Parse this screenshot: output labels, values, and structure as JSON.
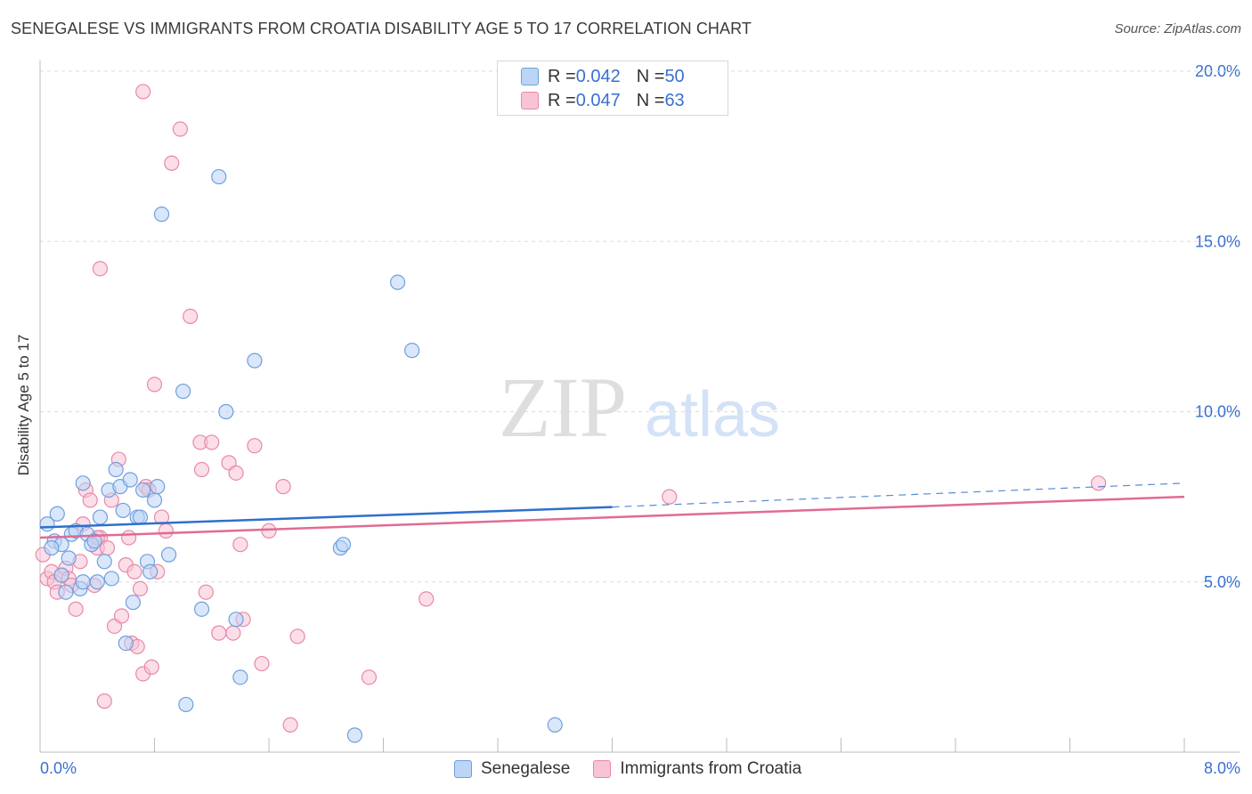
{
  "header": {
    "title": "SENEGALESE VS IMMIGRANTS FROM CROATIA DISABILITY AGE 5 TO 17 CORRELATION CHART",
    "source": "Source: ZipAtlas.com"
  },
  "watermark": {
    "zip": "ZIP",
    "atlas": "atlas"
  },
  "legend": {
    "series1": {
      "r_label": "R = ",
      "r_value": "0.042",
      "n_label": "N = ",
      "n_value": "50"
    },
    "series2": {
      "r_label": "R = ",
      "r_value": "0.047",
      "n_label": "N = ",
      "n_value": "63"
    }
  },
  "colors": {
    "blue_fill": "#bcd4f5",
    "blue_stroke": "#6f9fdd",
    "blue_line": "#2f6fcc",
    "pink_fill": "#f8c3d3",
    "pink_stroke": "#e889a8",
    "pink_line": "#e06b94",
    "tick_text": "#3a6fd0",
    "grid": "#dcdcdc"
  },
  "chart_data": {
    "type": "scatter",
    "title": "SENEGALESE VS IMMIGRANTS FROM CROATIA DISABILITY AGE 5 TO 17 CORRELATION CHART",
    "xlabel": "",
    "ylabel": "Disability Age 5 to 17",
    "xlim": [
      0,
      8
    ],
    "ylim": [
      0,
      20
    ],
    "x_tick_labels": [
      "0.0%",
      "8.0%"
    ],
    "y_ticks": [
      5,
      10,
      15,
      20
    ],
    "y_tick_labels": [
      "5.0%",
      "10.0%",
      "15.0%",
      "20.0%"
    ],
    "grid": true,
    "legend_position": "top-center",
    "series": [
      {
        "name": "Senegalese",
        "r": 0.042,
        "n": 50,
        "trend": {
          "x0": 0,
          "y0": 6.6,
          "x1": 4.0,
          "y1": 7.2,
          "dashed_to_x": 8.0,
          "dashed_to_y": 7.9
        },
        "points": [
          [
            0.05,
            6.7
          ],
          [
            0.1,
            6.2
          ],
          [
            0.12,
            7.0
          ],
          [
            0.15,
            6.1
          ],
          [
            0.18,
            4.7
          ],
          [
            0.2,
            5.7
          ],
          [
            0.22,
            6.4
          ],
          [
            0.25,
            6.5
          ],
          [
            0.28,
            4.8
          ],
          [
            0.3,
            7.9
          ],
          [
            0.33,
            6.4
          ],
          [
            0.36,
            6.1
          ],
          [
            0.38,
            6.2
          ],
          [
            0.4,
            5.0
          ],
          [
            0.42,
            6.9
          ],
          [
            0.45,
            5.6
          ],
          [
            0.48,
            7.7
          ],
          [
            0.5,
            5.1
          ],
          [
            0.53,
            8.3
          ],
          [
            0.56,
            7.8
          ],
          [
            0.58,
            7.1
          ],
          [
            0.6,
            3.2
          ],
          [
            0.63,
            8.0
          ],
          [
            0.65,
            4.4
          ],
          [
            0.68,
            6.9
          ],
          [
            0.7,
            6.9
          ],
          [
            0.72,
            7.7
          ],
          [
            0.75,
            5.6
          ],
          [
            0.77,
            5.3
          ],
          [
            0.8,
            7.4
          ],
          [
            0.82,
            7.8
          ],
          [
            0.85,
            15.8
          ],
          [
            0.9,
            5.8
          ],
          [
            1.0,
            10.6
          ],
          [
            1.02,
            1.4
          ],
          [
            1.13,
            4.2
          ],
          [
            1.25,
            16.9
          ],
          [
            1.3,
            10.0
          ],
          [
            1.37,
            3.9
          ],
          [
            1.4,
            2.2
          ],
          [
            1.5,
            11.5
          ],
          [
            2.1,
            6.0
          ],
          [
            2.12,
            6.1
          ],
          [
            2.2,
            0.5
          ],
          [
            2.5,
            13.8
          ],
          [
            2.6,
            11.8
          ],
          [
            3.6,
            0.8
          ],
          [
            0.3,
            5.0
          ],
          [
            0.15,
            5.2
          ],
          [
            0.08,
            6.0
          ]
        ]
      },
      {
        "name": "Immigrants from Croatia",
        "r": 0.047,
        "n": 63,
        "trend": {
          "x0": 0,
          "y0": 6.3,
          "x1": 8.0,
          "y1": 7.5
        },
        "points": [
          [
            0.02,
            5.8
          ],
          [
            0.05,
            5.1
          ],
          [
            0.08,
            5.3
          ],
          [
            0.1,
            5.0
          ],
          [
            0.12,
            4.7
          ],
          [
            0.15,
            5.2
          ],
          [
            0.18,
            5.4
          ],
          [
            0.2,
            5.1
          ],
          [
            0.22,
            4.9
          ],
          [
            0.25,
            4.2
          ],
          [
            0.28,
            5.6
          ],
          [
            0.3,
            6.7
          ],
          [
            0.32,
            7.7
          ],
          [
            0.35,
            7.4
          ],
          [
            0.38,
            4.9
          ],
          [
            0.4,
            6.0
          ],
          [
            0.42,
            6.3
          ],
          [
            0.45,
            1.5
          ],
          [
            0.47,
            6.0
          ],
          [
            0.5,
            7.4
          ],
          [
            0.52,
            3.7
          ],
          [
            0.55,
            8.6
          ],
          [
            0.57,
            4.0
          ],
          [
            0.6,
            5.5
          ],
          [
            0.62,
            6.3
          ],
          [
            0.64,
            3.2
          ],
          [
            0.66,
            5.3
          ],
          [
            0.68,
            3.1
          ],
          [
            0.7,
            4.8
          ],
          [
            0.72,
            2.3
          ],
          [
            0.74,
            7.8
          ],
          [
            0.76,
            7.7
          ],
          [
            0.78,
            2.5
          ],
          [
            0.8,
            10.8
          ],
          [
            0.82,
            5.3
          ],
          [
            0.85,
            6.9
          ],
          [
            0.88,
            6.5
          ],
          [
            0.92,
            17.3
          ],
          [
            0.98,
            18.3
          ],
          [
            1.05,
            12.8
          ],
          [
            1.12,
            9.1
          ],
          [
            1.13,
            8.3
          ],
          [
            1.16,
            4.7
          ],
          [
            1.2,
            9.1
          ],
          [
            1.25,
            3.5
          ],
          [
            1.32,
            8.5
          ],
          [
            1.35,
            3.5
          ],
          [
            1.37,
            8.2
          ],
          [
            1.4,
            6.1
          ],
          [
            1.42,
            3.9
          ],
          [
            1.5,
            9.0
          ],
          [
            1.55,
            2.6
          ],
          [
            1.6,
            6.5
          ],
          [
            1.7,
            7.8
          ],
          [
            1.75,
            0.8
          ],
          [
            1.8,
            3.4
          ],
          [
            2.3,
            2.2
          ],
          [
            2.7,
            4.5
          ],
          [
            4.4,
            7.5
          ],
          [
            7.4,
            7.9
          ],
          [
            0.72,
            19.4
          ],
          [
            0.42,
            14.2
          ],
          [
            0.4,
            6.3
          ]
        ]
      }
    ]
  },
  "bottom_legend": {
    "items": [
      {
        "label": "Senegalese"
      },
      {
        "label": "Immigrants from Croatia"
      }
    ]
  }
}
